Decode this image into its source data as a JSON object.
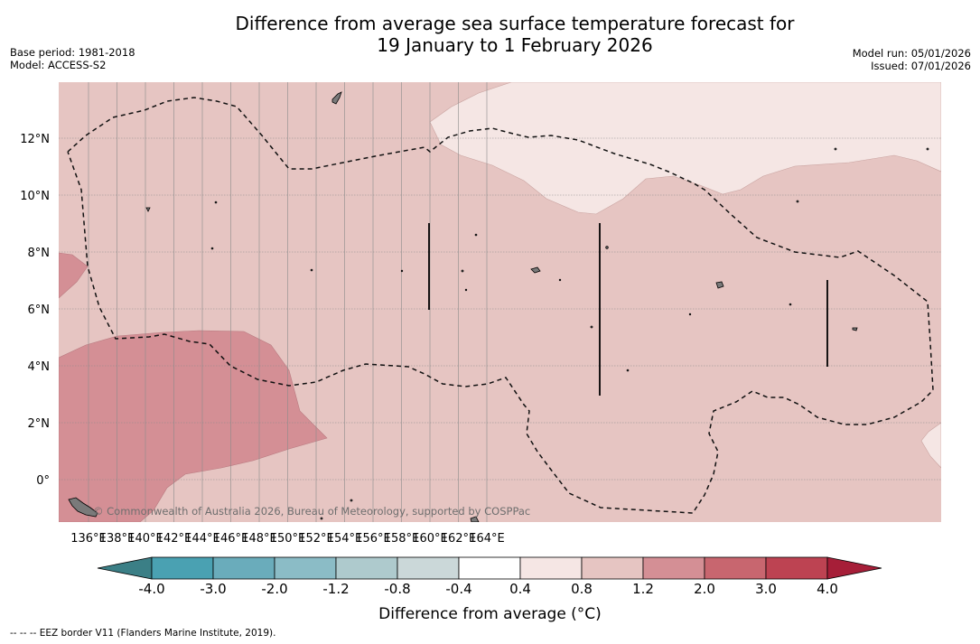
{
  "title": {
    "line1": "Difference from average sea surface temperature forecast for",
    "line2": "19 January to 1 February 2026"
  },
  "meta": {
    "base_period": "Base period: 1981-2018",
    "model": "Model: ACCESS-S2",
    "model_run": "Model run: 05/01/2026",
    "issued": "Issued: 07/01/2026"
  },
  "map": {
    "x_ticks": [
      "136°E",
      "138°E",
      "140°E",
      "142°E",
      "144°E",
      "146°E",
      "148°E",
      "150°E",
      "152°E",
      "154°E",
      "156°E",
      "158°E",
      "160°E",
      "162°E",
      "164°E"
    ],
    "y_ticks": [
      "12°N",
      "10°N",
      "8°N",
      "6°N",
      "4°N",
      "2°N",
      "0°"
    ],
    "watermark": "© Commonwealth of Australia 2026, Bureau of Meteorology, supported by COSPPac",
    "colors": {
      "background_anomaly": "#e6c5c2",
      "light_anomaly": "#f5e6e4",
      "strong_anomaly": "#d48f95",
      "land": "#7a7a7a"
    }
  },
  "colorbar": {
    "labels": [
      "-4.0",
      "-3.0",
      "-2.0",
      "-1.2",
      "-0.8",
      "-0.4",
      "0.4",
      "0.8",
      "1.2",
      "2.0",
      "3.0",
      "4.0"
    ],
    "colors": [
      "#4aa1b2",
      "#6aacbb",
      "#8bbcc6",
      "#aecacd",
      "#cbd8d9",
      "#ffffff",
      "#f5e6e4",
      "#e6c5c2",
      "#d48f95",
      "#c8666f",
      "#bd4352"
    ],
    "under_color": "#3b7f86",
    "over_color": "#a61e38",
    "title": "Difference from average (°C)"
  },
  "footer": {
    "legend": "--  --  -- EEZ border V11 (Flanders Marine Institute, 2019)."
  }
}
